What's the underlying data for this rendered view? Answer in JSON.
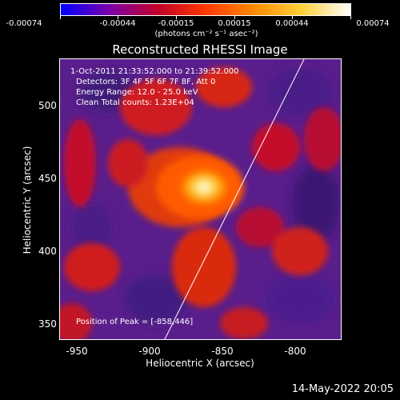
{
  "colorbar": {
    "ticks": [
      "-0.00074",
      "-0.00044",
      "-0.00015",
      "0.00015",
      "0.00044",
      "0.00074"
    ],
    "units": "(photons cm⁻² s⁻¹ asec⁻²)",
    "gradient_colors": [
      "#0000ff",
      "#7a00a8",
      "#c0002a",
      "#ff3800",
      "#ff8a00",
      "#ffd23a",
      "#ffffff"
    ]
  },
  "plot": {
    "title": "Reconstructed RHESSI Image",
    "xlabel": "Heliocentric X (arcsec)",
    "ylabel": "Heliocentric Y (arcsec)",
    "xticks": [
      "-950",
      "-900",
      "-850",
      "-800"
    ],
    "yticks": [
      "500",
      "450",
      "400",
      "350"
    ]
  },
  "info": {
    "time_range": "1-Oct-2011 21:33:52.000 to 21:39:52.000",
    "detectors": "Detectors: 3F 4F 5F 6F 7F 8F, Att 0",
    "energy": "Energy Range: 12.0 - 25.0 keV",
    "clean": "Clean    Total counts: 1.23E+04",
    "peak": "Position of Peak = [-858,446]"
  },
  "timestamp": "14-May-2022 20:05"
}
